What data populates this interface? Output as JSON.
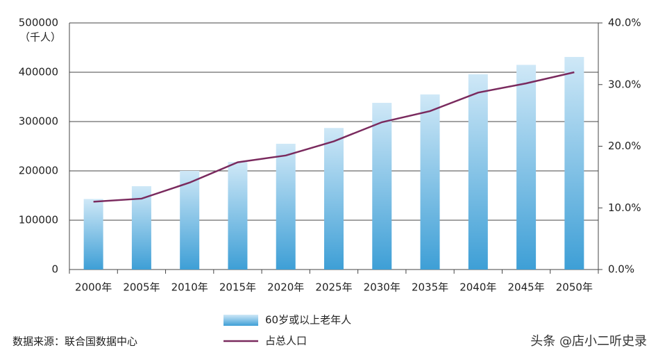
{
  "chart_data": {
    "type": "bar-line",
    "y_label": "（千人）",
    "categories": [
      "2000年",
      "2005年",
      "2010年",
      "2015年",
      "2020年",
      "2025年",
      "2030年",
      "2035年",
      "2040年",
      "2045年",
      "2050年"
    ],
    "series": [
      {
        "name": "60岁或以上老年人",
        "type": "bar",
        "color": "#3e9fd6",
        "values": [
          143000,
          169000,
          200000,
          218000,
          255000,
          287000,
          338000,
          355000,
          396000,
          415000,
          431000
        ]
      },
      {
        "name": "占总人口",
        "type": "line",
        "axis": "y2",
        "color": "#7a2a5e",
        "values": [
          11.0,
          11.5,
          14.1,
          17.4,
          18.5,
          20.8,
          23.9,
          25.7,
          28.7,
          30.2,
          32.0
        ]
      }
    ],
    "ylim": [
      0,
      500000
    ],
    "yticks": [
      0,
      100000,
      200000,
      300000,
      400000,
      500000
    ],
    "y2lim": [
      0,
      40
    ],
    "y2ticks": [
      {
        "value": 0,
        "label": "0.0%"
      },
      {
        "value": 10,
        "label": "10.0%"
      },
      {
        "value": 20,
        "label": "20.0%"
      },
      {
        "value": 30,
        "label": "30.0%"
      },
      {
        "value": 40,
        "label": "40.0%"
      }
    ],
    "grid": true,
    "legend": "bottom",
    "source": "数据来源：联合国数据中心",
    "watermark": "头条 @店小二听史录"
  }
}
